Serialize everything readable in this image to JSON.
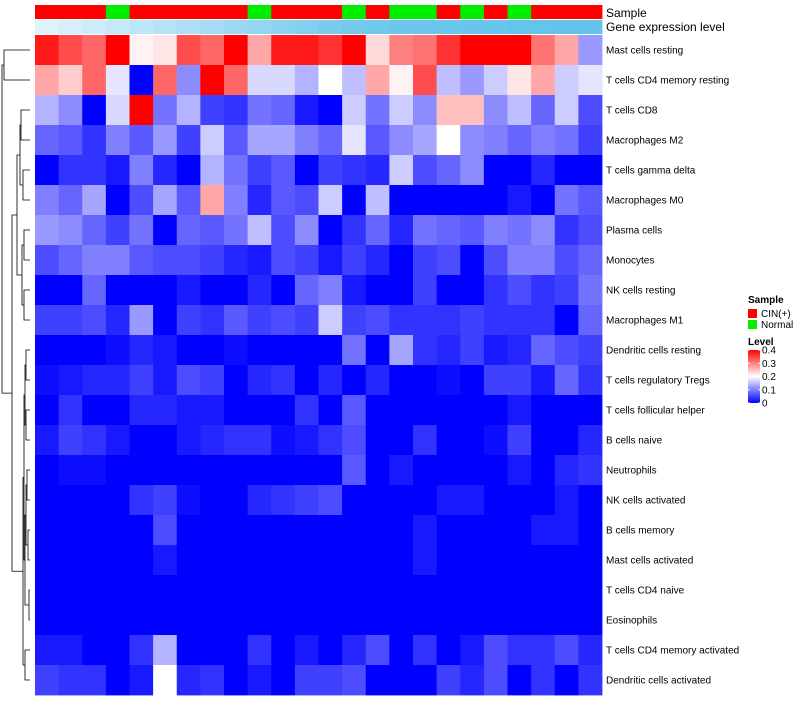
{
  "chart_data": {
    "type": "heatmap",
    "title": "",
    "annotation_tracks": [
      {
        "label": "Sample"
      },
      {
        "label": "Gene expression level"
      }
    ],
    "columns": 24,
    "sample_groups": [
      "CIN(+)",
      "CIN(+)",
      "CIN(+)",
      "Normal",
      "CIN(+)",
      "CIN(+)",
      "CIN(+)",
      "CIN(+)",
      "CIN(+)",
      "Normal",
      "CIN(+)",
      "CIN(+)",
      "CIN(+)",
      "Normal",
      "CIN(+)",
      "Normal",
      "Normal",
      "CIN(+)",
      "Normal",
      "CIN(+)",
      "Normal",
      "CIN(+)",
      "CIN(+)",
      "CIN(+)"
    ],
    "expression_levels": [
      0.06,
      0.12,
      0.18,
      0.24,
      0.3,
      0.36,
      0.42,
      0.48,
      0.54,
      0.6,
      0.66,
      0.72,
      0.78,
      0.82,
      0.85,
      0.87,
      0.88,
      0.89,
      0.9,
      0.91,
      0.92,
      0.93,
      0.94,
      0.95
    ],
    "rows": [
      "Mast cells resting",
      "T cells CD4 memory resting",
      "T cells CD8",
      "Macrophages M2",
      "T cells gamma delta",
      "Macrophages M0",
      "Plasma cells",
      "Monocytes",
      "NK cells resting",
      "Macrophages M1",
      "Dendritic cells resting",
      "T cells regulatory  Tregs",
      "T cells follicular helper",
      "B cells naive",
      "Neutrophils",
      "NK cells activated",
      "B cells memory",
      "Mast cells activated",
      "T cells CD4 naive",
      "Eosinophils",
      "T cells CD4 memory activated",
      "Dendritic cells activated"
    ],
    "values": [
      [
        0.38,
        0.34,
        0.32,
        0.4,
        0.21,
        0.22,
        0.34,
        0.32,
        0.4,
        0.27,
        0.38,
        0.38,
        0.36,
        0.4,
        0.23,
        0.3,
        0.31,
        0.36,
        0.4,
        0.4,
        0.4,
        0.31,
        0.27,
        0.12
      ],
      [
        0.27,
        0.24,
        0.32,
        0.18,
        0.0,
        0.32,
        0.11,
        0.4,
        0.32,
        0.17,
        0.17,
        0.14,
        0.2,
        0.15,
        0.27,
        0.21,
        0.34,
        0.15,
        0.12,
        0.16,
        0.22,
        0.27,
        0.16,
        0.18
      ],
      [
        0.14,
        0.11,
        0.0,
        0.17,
        0.4,
        0.09,
        0.14,
        0.05,
        0.04,
        0.09,
        0.08,
        0.02,
        0.0,
        0.16,
        0.09,
        0.16,
        0.11,
        0.25,
        0.25,
        0.11,
        0.15,
        0.08,
        0.16,
        0.06
      ],
      [
        0.08,
        0.07,
        0.04,
        0.1,
        0.07,
        0.12,
        0.05,
        0.16,
        0.07,
        0.13,
        0.13,
        0.1,
        0.08,
        0.18,
        0.07,
        0.11,
        0.13,
        0.2,
        0.11,
        0.1,
        0.08,
        0.1,
        0.09,
        0.05
      ],
      [
        0.0,
        0.04,
        0.04,
        0.02,
        0.1,
        0.03,
        0.0,
        0.14,
        0.09,
        0.05,
        0.07,
        0.0,
        0.05,
        0.04,
        0.03,
        0.16,
        0.06,
        0.08,
        0.11,
        0.0,
        0.0,
        0.03,
        0.0,
        0.0
      ],
      [
        0.1,
        0.08,
        0.13,
        0.0,
        0.06,
        0.13,
        0.07,
        0.27,
        0.1,
        0.03,
        0.07,
        0.06,
        0.16,
        0.0,
        0.15,
        0.0,
        0.0,
        0.0,
        0.0,
        0.0,
        0.02,
        0.0,
        0.09,
        0.07
      ],
      [
        0.12,
        0.11,
        0.08,
        0.05,
        0.09,
        0.0,
        0.08,
        0.07,
        0.09,
        0.15,
        0.06,
        0.11,
        0.0,
        0.04,
        0.08,
        0.03,
        0.09,
        0.08,
        0.07,
        0.1,
        0.09,
        0.11,
        0.04,
        0.06
      ],
      [
        0.06,
        0.08,
        0.1,
        0.1,
        0.07,
        0.06,
        0.06,
        0.05,
        0.03,
        0.02,
        0.06,
        0.05,
        0.02,
        0.05,
        0.03,
        0.0,
        0.05,
        0.06,
        0.0,
        0.06,
        0.1,
        0.1,
        0.06,
        0.08
      ],
      [
        0.0,
        0.0,
        0.08,
        0.0,
        0.0,
        0.0,
        0.02,
        0.0,
        0.0,
        0.03,
        0.0,
        0.08,
        0.1,
        0.02,
        0.0,
        0.0,
        0.05,
        0.0,
        0.0,
        0.04,
        0.06,
        0.04,
        0.05,
        0.09
      ],
      [
        0.05,
        0.05,
        0.06,
        0.03,
        0.12,
        0.0,
        0.05,
        0.04,
        0.07,
        0.05,
        0.06,
        0.05,
        0.16,
        0.05,
        0.06,
        0.04,
        0.04,
        0.04,
        0.05,
        0.04,
        0.04,
        0.04,
        0.0,
        0.08
      ],
      [
        0.0,
        0.0,
        0.0,
        0.01,
        0.03,
        0.02,
        0.0,
        0.0,
        0.01,
        0.0,
        0.0,
        0.0,
        0.0,
        0.09,
        0.0,
        0.13,
        0.04,
        0.03,
        0.05,
        0.02,
        0.03,
        0.08,
        0.06,
        0.05
      ],
      [
        0.01,
        0.02,
        0.03,
        0.03,
        0.05,
        0.02,
        0.06,
        0.05,
        0.0,
        0.03,
        0.04,
        0.0,
        0.03,
        0.0,
        0.03,
        0.0,
        0.0,
        0.01,
        0.0,
        0.05,
        0.05,
        0.02,
        0.08,
        0.04
      ],
      [
        0.0,
        0.04,
        0.0,
        0.0,
        0.03,
        0.03,
        0.02,
        0.02,
        0.0,
        0.0,
        0.0,
        0.04,
        0.0,
        0.07,
        0.0,
        0.0,
        0.0,
        0.0,
        0.0,
        0.0,
        0.02,
        0.0,
        0.0,
        0.0
      ],
      [
        0.02,
        0.05,
        0.04,
        0.02,
        0.0,
        0.0,
        0.02,
        0.03,
        0.04,
        0.04,
        0.01,
        0.02,
        0.04,
        0.06,
        0.0,
        0.0,
        0.04,
        0.0,
        0.0,
        0.01,
        0.05,
        0.0,
        0.0,
        0.03
      ],
      [
        0.0,
        0.01,
        0.01,
        0.0,
        0.0,
        0.0,
        0.0,
        0.0,
        0.0,
        0.0,
        0.0,
        0.0,
        0.0,
        0.07,
        0.0,
        0.02,
        0.0,
        0.0,
        0.0,
        0.0,
        0.02,
        0.0,
        0.03,
        0.04
      ],
      [
        0.0,
        0.0,
        0.0,
        0.0,
        0.04,
        0.05,
        0.01,
        0.0,
        0.0,
        0.03,
        0.04,
        0.05,
        0.06,
        0.0,
        0.0,
        0.0,
        0.0,
        0.02,
        0.02,
        0.0,
        0.0,
        0.0,
        0.02,
        0.0
      ],
      [
        0.0,
        0.0,
        0.0,
        0.0,
        0.0,
        0.06,
        0.0,
        0.0,
        0.0,
        0.0,
        0.0,
        0.0,
        0.0,
        0.0,
        0.0,
        0.0,
        0.02,
        0.0,
        0.0,
        0.0,
        0.0,
        0.02,
        0.02,
        0.0
      ],
      [
        0.0,
        0.0,
        0.0,
        0.0,
        0.0,
        0.02,
        0.0,
        0.0,
        0.0,
        0.0,
        0.0,
        0.0,
        0.0,
        0.0,
        0.0,
        0.0,
        0.02,
        0.0,
        0.0,
        0.0,
        0.0,
        0.0,
        0.0,
        0.0
      ],
      [
        0.0,
        0.0,
        0.0,
        0.0,
        0.0,
        0.0,
        0.0,
        0.0,
        0.0,
        0.0,
        0.0,
        0.0,
        0.0,
        0.0,
        0.0,
        0.0,
        0.0,
        0.0,
        0.0,
        0.0,
        0.0,
        0.0,
        0.0,
        0.0
      ],
      [
        0.0,
        0.0,
        0.0,
        0.0,
        0.0,
        0.0,
        0.0,
        0.0,
        0.0,
        0.0,
        0.0,
        0.0,
        0.0,
        0.0,
        0.0,
        0.0,
        0.0,
        0.0,
        0.0,
        0.0,
        0.0,
        0.0,
        0.0,
        0.0
      ],
      [
        0.02,
        0.02,
        0.0,
        0.0,
        0.04,
        0.14,
        0.0,
        0.0,
        0.0,
        0.04,
        0.0,
        0.02,
        0.0,
        0.03,
        0.06,
        0.0,
        0.04,
        0.0,
        0.02,
        0.06,
        0.04,
        0.04,
        0.06,
        0.03
      ],
      [
        0.05,
        0.04,
        0.04,
        0.0,
        0.02,
        0.2,
        0.03,
        0.04,
        0.0,
        0.02,
        0.0,
        0.05,
        0.05,
        0.06,
        0.0,
        0.0,
        0.0,
        0.05,
        0.03,
        0.06,
        0.0,
        0.04,
        0.0,
        0.04
      ]
    ],
    "legend": {
      "sample_title": "Sample",
      "sample_entries": [
        {
          "label": "CIN(+)",
          "color": "#ff0000"
        },
        {
          "label": "Normal",
          "color": "#00ee00"
        }
      ],
      "level_title": "Level",
      "level_ticks": [
        {
          "value": 0.4,
          "label": "0.4"
        },
        {
          "value": 0.3,
          "label": "0.3"
        },
        {
          "value": 0.2,
          "label": "0.2"
        },
        {
          "value": 0.1,
          "label": "0.1"
        },
        {
          "value": 0.0,
          "label": "0"
        }
      ],
      "position": "right"
    },
    "scale": {
      "min": 0,
      "mid": 0.2,
      "max": 0.4,
      "low_color": "#0000ff",
      "mid_color": "#ffffff",
      "high_color": "#ff0000"
    },
    "expression_color": "#5bc0ea",
    "expression_light_color": "#e6f6fd",
    "dendrogram": "rows"
  }
}
